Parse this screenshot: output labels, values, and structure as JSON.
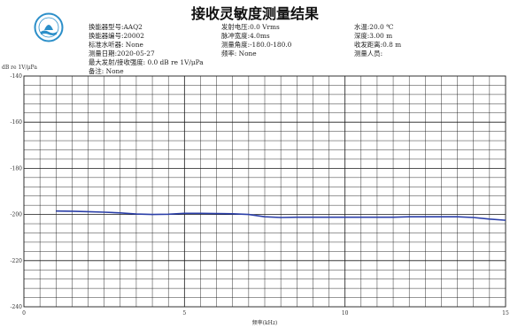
{
  "header": {
    "title": "接收灵敏度测量结果",
    "fields": [
      {
        "label": "换能器型号:",
        "value": "AAQ2"
      },
      {
        "label": "换能器编号:",
        "value": "20002"
      },
      {
        "label": "标准水听器:",
        "value": " None"
      },
      {
        "label": "测量日期:",
        "value": "2020-05-27"
      },
      {
        "label": "最大发射/接收强度:",
        "value": " 0.0 dB re 1V/μPa"
      },
      {
        "label": "备注:",
        "value": " None"
      },
      {
        "label": "发射电压:",
        "value": "0.0 Vrms"
      },
      {
        "label": "脉冲宽度:",
        "value": "4.0ms"
      },
      {
        "label": "测量角度:",
        "value": "-180.0-180.0"
      },
      {
        "label": "频率:",
        "value": " None"
      },
      {
        "label": "水温:",
        "value": "20.0 ℃"
      },
      {
        "label": "深度:",
        "value": "3.00 m"
      },
      {
        "label": "收发距离:",
        "value": "0.8 m"
      },
      {
        "label": "测量人员:",
        "value": ""
      }
    ]
  },
  "colors": {
    "line": "#2b3fa8",
    "grid": "#1a1a1a",
    "logo": "#2c8fc9"
  },
  "chart_data": {
    "type": "line",
    "title": "",
    "xlabel": "频率(kHz)",
    "ylabel": "dB re 1V/μPa",
    "xlim": [
      0,
      15
    ],
    "ylim": [
      -240,
      -140
    ],
    "xticks": [
      0,
      5,
      10,
      15
    ],
    "yticks": [
      -140,
      -160,
      -180,
      -200,
      -220,
      -240
    ],
    "grid": true,
    "series": [
      {
        "x": [
          1.0,
          1.5,
          2.0,
          2.5,
          3.0,
          3.5,
          4.0,
          4.5,
          5.0,
          5.5,
          6.0,
          6.5,
          7.0,
          7.5,
          8.0,
          8.5,
          9.0,
          9.5,
          10.0,
          10.5,
          11.0,
          11.5,
          12.0,
          12.5,
          13.0,
          13.5,
          14.0,
          14.5,
          15.0
        ],
        "y": [
          -198.5,
          -198.6,
          -198.8,
          -199.0,
          -199.3,
          -199.8,
          -200.0,
          -199.9,
          -199.5,
          -199.5,
          -199.6,
          -199.7,
          -200.0,
          -201.0,
          -201.3,
          -201.2,
          -201.2,
          -201.2,
          -201.2,
          -201.2,
          -201.2,
          -201.2,
          -201.0,
          -201.0,
          -201.0,
          -201.0,
          -201.3,
          -202.0,
          -202.5
        ]
      }
    ]
  }
}
